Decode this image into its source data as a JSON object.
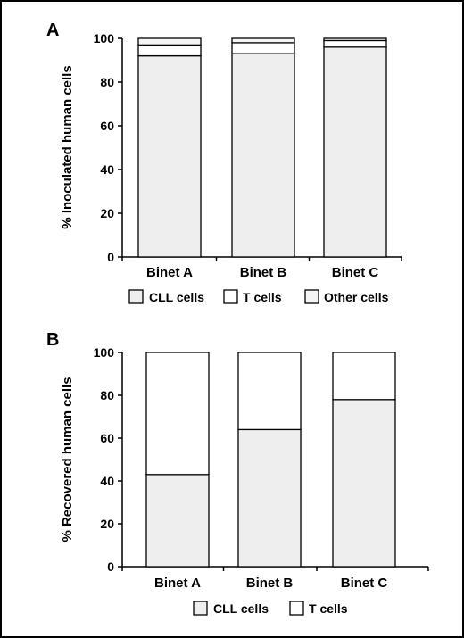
{
  "chart_data": [
    {
      "panel": "A",
      "type": "bar",
      "stacked": true,
      "categories": [
        "Binet A",
        "Binet B",
        "Binet C"
      ],
      "series": [
        {
          "name": "CLL cells",
          "values": [
            92,
            93,
            96
          ],
          "color": "#eeeeee"
        },
        {
          "name": "T cells",
          "values": [
            5,
            5,
            3
          ],
          "color": "#ffffff"
        },
        {
          "name": "Other cells",
          "values": [
            3,
            2,
            1
          ],
          "color": "#f4f4f4"
        }
      ],
      "ylabel": "% Inoculated human cells",
      "ylim": [
        0,
        100
      ],
      "yticks": [
        0,
        20,
        40,
        60,
        80,
        100
      ],
      "grid": false,
      "legend": "bottom"
    },
    {
      "panel": "B",
      "type": "bar",
      "stacked": true,
      "categories": [
        "Binet A",
        "Binet B",
        "Binet C"
      ],
      "series": [
        {
          "name": "CLL cells",
          "values": [
            43,
            64,
            78
          ],
          "color": "#eeeeee"
        },
        {
          "name": "T cells",
          "values": [
            57,
            36,
            22
          ],
          "color": "#ffffff"
        }
      ],
      "ylabel": "% Recovered human cells",
      "ylim": [
        0,
        100
      ],
      "yticks": [
        0,
        20,
        40,
        60,
        80,
        100
      ],
      "grid": false,
      "legend": "bottom"
    }
  ]
}
